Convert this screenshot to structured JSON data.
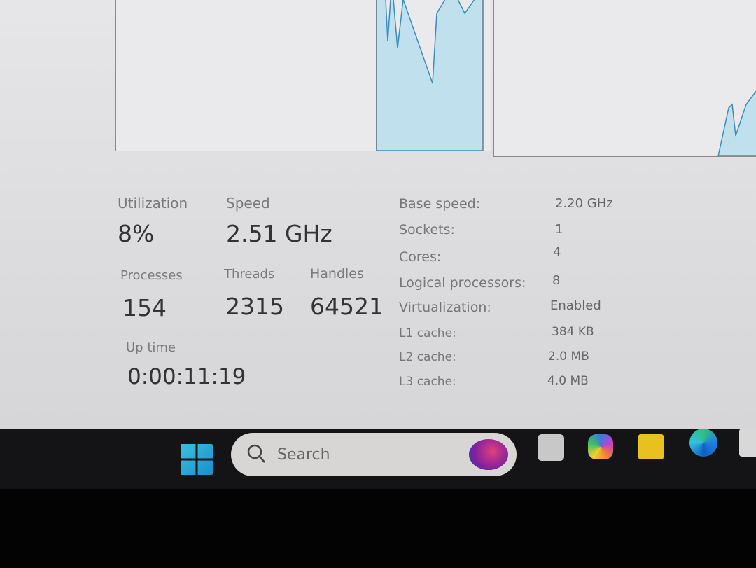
{
  "cpu": {
    "utilization_label": "Utilization",
    "utilization_value": "8%",
    "speed_label": "Speed",
    "speed_value": "2.51 GHz",
    "processes_label": "Processes",
    "processes_value": "154",
    "threads_label": "Threads",
    "threads_value": "2315",
    "handles_label": "Handles",
    "handles_value": "64521",
    "uptime_label": "Up time",
    "uptime_value": "0:00:11:19",
    "details": [
      {
        "key": "Base speed:",
        "value": "2.20 GHz"
      },
      {
        "key": "Sockets:",
        "value": "1"
      },
      {
        "key": "Cores:",
        "value": "4"
      },
      {
        "key": "Logical processors:",
        "value": "8"
      },
      {
        "key": "Virtualization:",
        "value": "Enabled"
      },
      {
        "key": "L1 cache:",
        "value": "384 KB"
      },
      {
        "key": "L2 cache:",
        "value": "2.0 MB"
      },
      {
        "key": "L3 cache:",
        "value": "4.0 MB"
      }
    ],
    "graph_color": "#4aa3c8"
  },
  "taskbar": {
    "search_placeholder": "Search",
    "icons": [
      "windows-start-icon",
      "task-view-icon",
      "copilot-icon",
      "file-explorer-icon",
      "edge-icon",
      "store-icon"
    ]
  }
}
